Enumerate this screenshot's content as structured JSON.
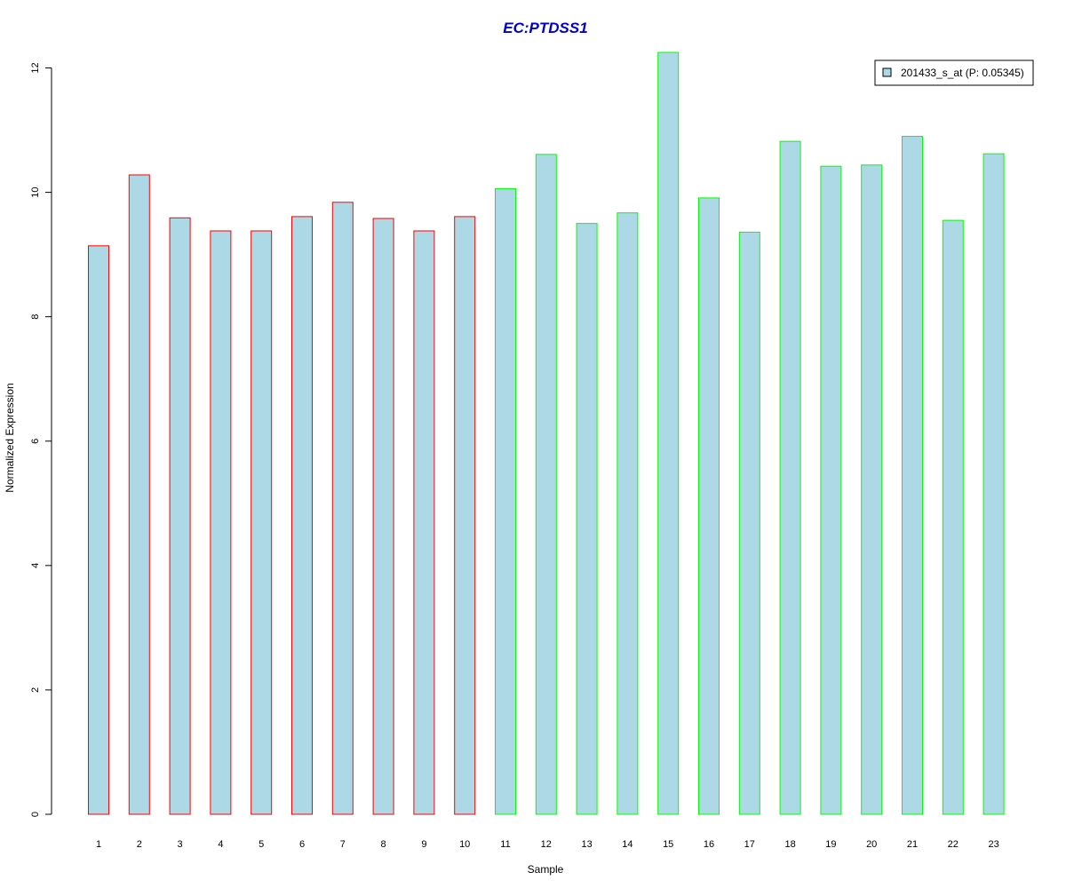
{
  "chart_data": {
    "type": "bar",
    "title": "EC:PTDSS1",
    "xlabel": "Sample",
    "ylabel": "Normalized Expression",
    "ylim": [
      0,
      12.25
    ],
    "yticks": [
      0,
      2,
      4,
      6,
      8,
      10,
      12
    ],
    "grid": false,
    "legend_position": "top-right",
    "categories": [
      "1",
      "2",
      "3",
      "4",
      "5",
      "6",
      "7",
      "8",
      "9",
      "10",
      "11",
      "12",
      "13",
      "14",
      "15",
      "16",
      "17",
      "18",
      "19",
      "20",
      "21",
      "22",
      "23"
    ],
    "series": [
      {
        "name": "201433_s_at (P: 0.05345)",
        "values": [
          9.14,
          10.28,
          9.59,
          9.38,
          9.38,
          9.61,
          9.84,
          9.58,
          9.38,
          9.61,
          10.06,
          10.61,
          9.5,
          9.67,
          12.25,
          9.91,
          9.36,
          10.82,
          10.42,
          10.44,
          10.9,
          9.55,
          10.62
        ]
      }
    ],
    "group_borders": [
      "#ff0000",
      "#ff0000",
      "#ff0000",
      "#ff0000",
      "#ff0000",
      "#ff0000",
      "#ff0000",
      "#ff0000",
      "#ff0000",
      "#ff0000",
      "#00ff00",
      "#00ff00",
      "#00ff00",
      "#00ff00",
      "#00ff00",
      "#00ff00",
      "#00ff00",
      "#00ff00",
      "#00ff00",
      "#00ff00",
      "#00ff00",
      "#00ff00",
      "#00ff00"
    ],
    "colors": {
      "bar_fill": "#add8e6",
      "title": "#0000cc"
    }
  }
}
